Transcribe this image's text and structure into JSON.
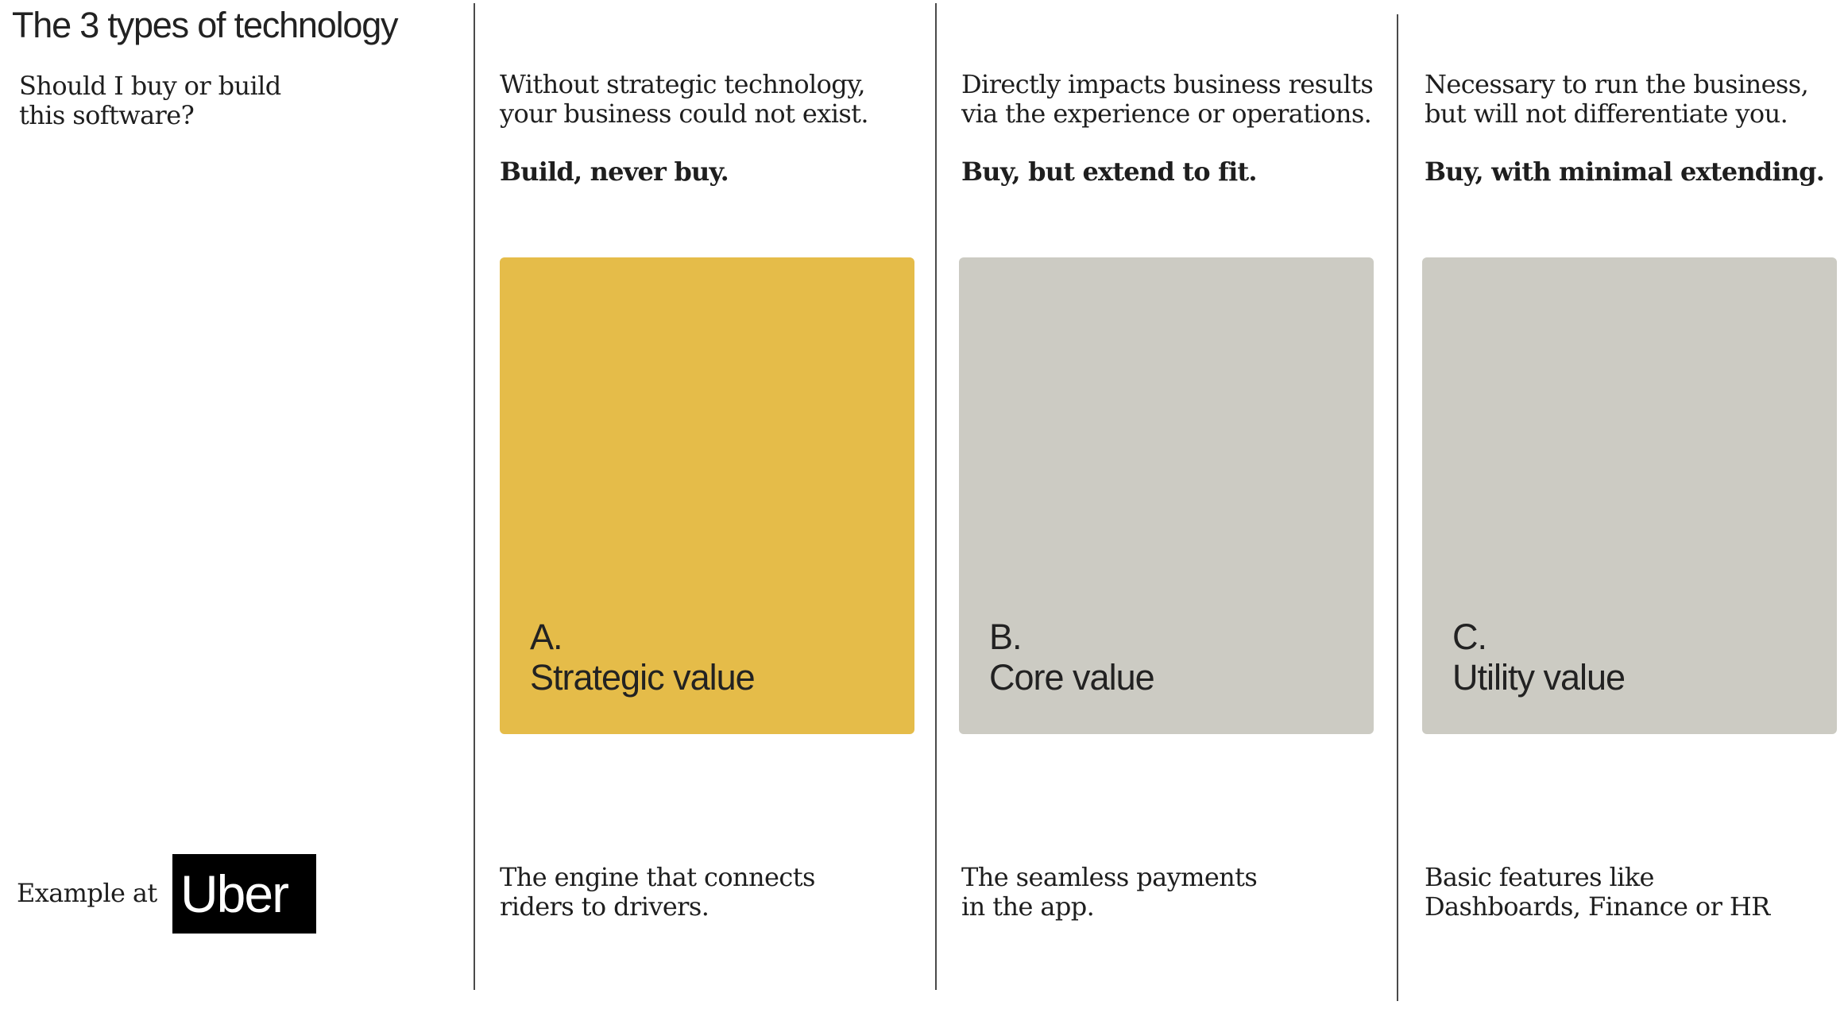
{
  "title": "The 3 types of technology",
  "question": [
    "Should I buy or build",
    "this software?"
  ],
  "example": {
    "label": "Example at",
    "logo_text": "Uber"
  },
  "columns": [
    {
      "description": [
        "Without strategic technology,",
        "your business could not exist."
      ],
      "rule": "Build, never buy.",
      "card": {
        "letter": "A.",
        "title": "Strategic value",
        "color": "#e5bc49"
      },
      "example": [
        "The engine that connects",
        "riders to drivers."
      ]
    },
    {
      "description": [
        "Directly impacts business results",
        "via the experience or operations."
      ],
      "rule": "Buy, but extend to fit.",
      "card": {
        "letter": "B.",
        "title": "Core value",
        "color": "#cccbc3"
      },
      "example": [
        "The seamless payments",
        "in the app."
      ]
    },
    {
      "description": [
        "Necessary to run the business,",
        "but will not differentiate you."
      ],
      "rule": "Buy, with minimal extending.",
      "card": {
        "letter": "C.",
        "title": "Utility value",
        "color": "#cccbc3"
      },
      "example": [
        "Basic features like",
        "Dashboards, Finance or HR"
      ]
    }
  ]
}
